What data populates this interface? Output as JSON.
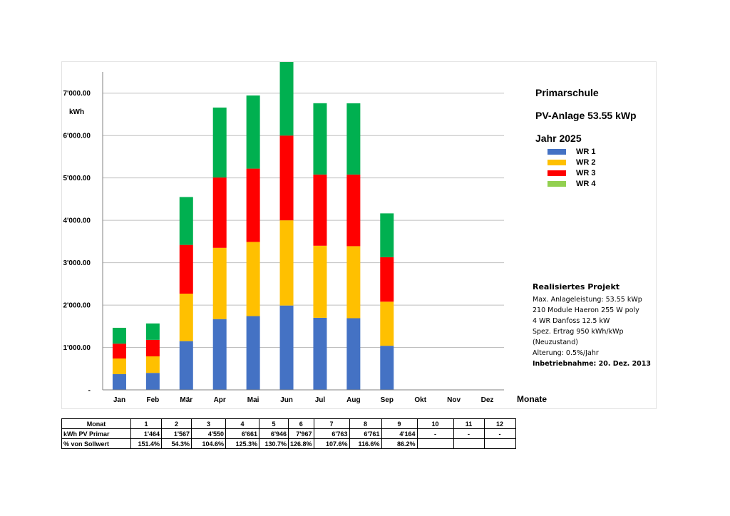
{
  "header": {
    "title_lines": [
      "Primarschule",
      "PV-Anlage 53.55 kWp",
      "Jahr 2025"
    ],
    "unit": "kWh"
  },
  "colors": {
    "WR 1": "#4472c4",
    "WR 2": "#ffc000",
    "WR 3": "#ff0000",
    "WR 4": "#92d050",
    "top_segment": "#00b050"
  },
  "chart_data": {
    "type": "bar",
    "stacked": true,
    "categories": [
      "Jan",
      "Feb",
      "Mär",
      "Apr",
      "Mai",
      "Jun",
      "Jul",
      "Aug",
      "Sep",
      "Okt",
      "Nov",
      "Dez"
    ],
    "series": [
      {
        "name": "WR 1",
        "color": "#4472c4",
        "values": [
          370,
          400,
          1150,
          1670,
          1740,
          1990,
          1700,
          1690,
          1040,
          0,
          0,
          0
        ]
      },
      {
        "name": "WR 2",
        "color": "#ffc000",
        "values": [
          370,
          390,
          1120,
          1680,
          1750,
          2010,
          1700,
          1700,
          1040,
          0,
          0,
          0
        ]
      },
      {
        "name": "WR 3",
        "color": "#ff0000",
        "values": [
          350,
          390,
          1150,
          1660,
          1730,
          2000,
          1680,
          1690,
          1050,
          0,
          0,
          0
        ]
      },
      {
        "name": "WR 4",
        "color": "#92d050",
        "values": [
          0,
          0,
          0,
          0,
          0,
          0,
          0,
          0,
          0,
          0,
          0,
          0
        ]
      },
      {
        "color": "#00b050",
        "values": [
          374,
          387,
          1130,
          1651,
          1726,
          1967,
          1683,
          1681,
          1034,
          0,
          0,
          0
        ]
      }
    ],
    "xlabel": "Monate",
    "ylabel": "kWh",
    "ylim": [
      0,
      7500
    ],
    "yticks": [
      0,
      1000,
      2000,
      3000,
      4000,
      5000,
      6000,
      7000
    ],
    "ytick_labels": [
      "-",
      "1'000.00",
      "2'000.00",
      "3'000.00",
      "4'000.00",
      "5'000.00",
      "6'000.00",
      "7'000.00"
    ],
    "grid": true,
    "legend": "right"
  },
  "legend": [
    {
      "label": "WR 1",
      "color": "#4472c4"
    },
    {
      "label": "WR 2",
      "color": "#ffc000"
    },
    {
      "label": "WR 3",
      "color": "#ff0000"
    },
    {
      "label": "WR 4",
      "color": "#92d050"
    }
  ],
  "project": {
    "title": "Realisiertes Projekt",
    "lines": [
      "Max. Anlageleistung: 53.55 kWp",
      "210 Module Haeron 255 W poly",
      "4 WR Danfoss 12.5 kW",
      "Spez. Ertrag 950 kWh/kWp",
      "(Neuzustand)",
      "Alterung: 0.5%/Jahr"
    ],
    "commissioning": "Inbetriebnahme: 20. Dez. 2013"
  },
  "table": {
    "head": [
      "Monat",
      "1",
      "2",
      "3",
      "4",
      "5",
      "6",
      "7",
      "8",
      "9",
      "10",
      "11",
      "12"
    ],
    "rows": [
      [
        "kWh PV Primar",
        "1'464",
        "1'567",
        "4'550",
        "6'661",
        "6'946",
        "7'967",
        "6'763",
        "6'761",
        "4'164",
        "-",
        "-",
        "-"
      ],
      [
        "% von Sollwert",
        "151.4%",
        "54.3%",
        "104.6%",
        "125.3%",
        "130.7%",
        "126.8%",
        "107.6%",
        "116.6%",
        "86.2%",
        "",
        "",
        ""
      ]
    ]
  }
}
